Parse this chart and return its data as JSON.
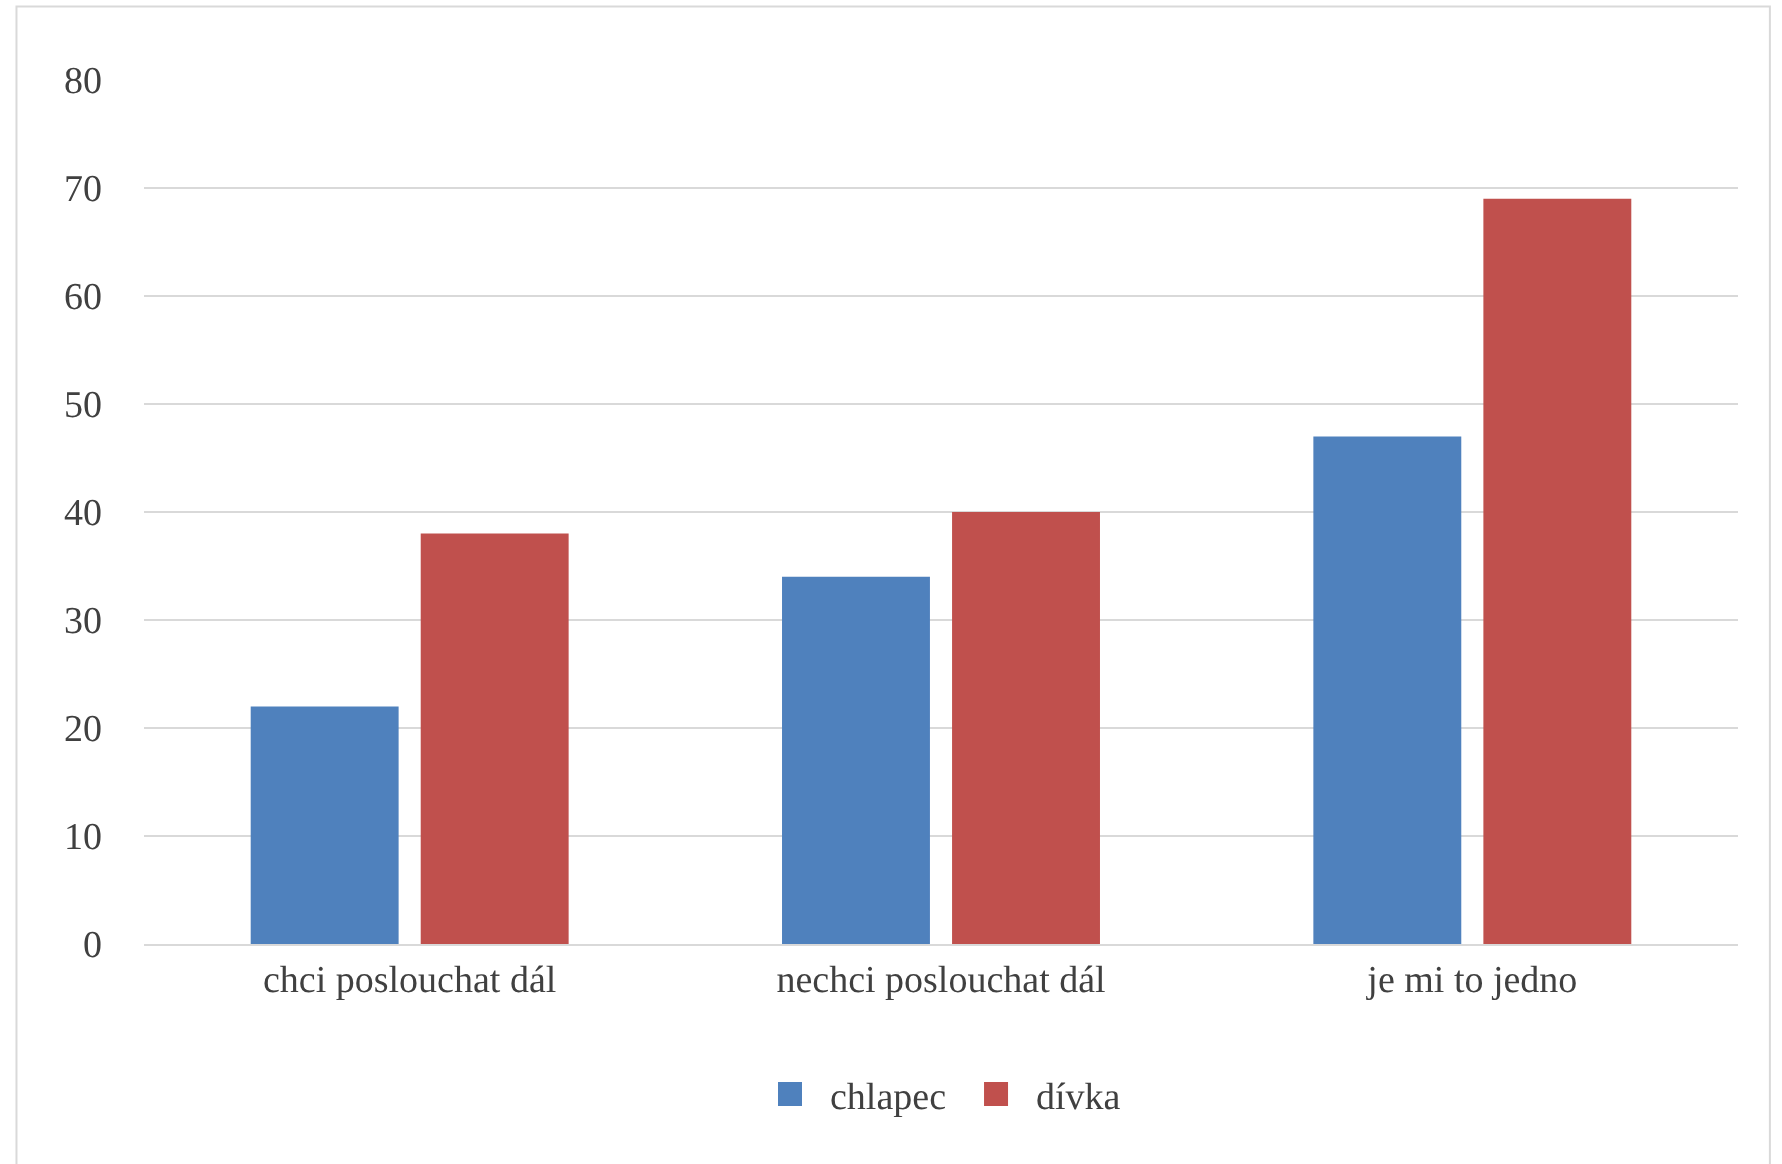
{
  "chart_data": {
    "type": "bar",
    "categories": [
      "chci poslouchat dál",
      "nechci poslouchat dál",
      "je mi to jedno"
    ],
    "series": [
      {
        "name": "chlapec",
        "color": "#4f81bd",
        "values": [
          22,
          34,
          47
        ]
      },
      {
        "name": "dívka",
        "color": "#c0504d",
        "values": [
          38,
          40,
          69
        ]
      }
    ],
    "ylim": [
      0,
      80
    ],
    "yticks": [
      0,
      10,
      20,
      30,
      40,
      50,
      60,
      70,
      80
    ],
    "grid": "y",
    "legend": "bottom"
  }
}
